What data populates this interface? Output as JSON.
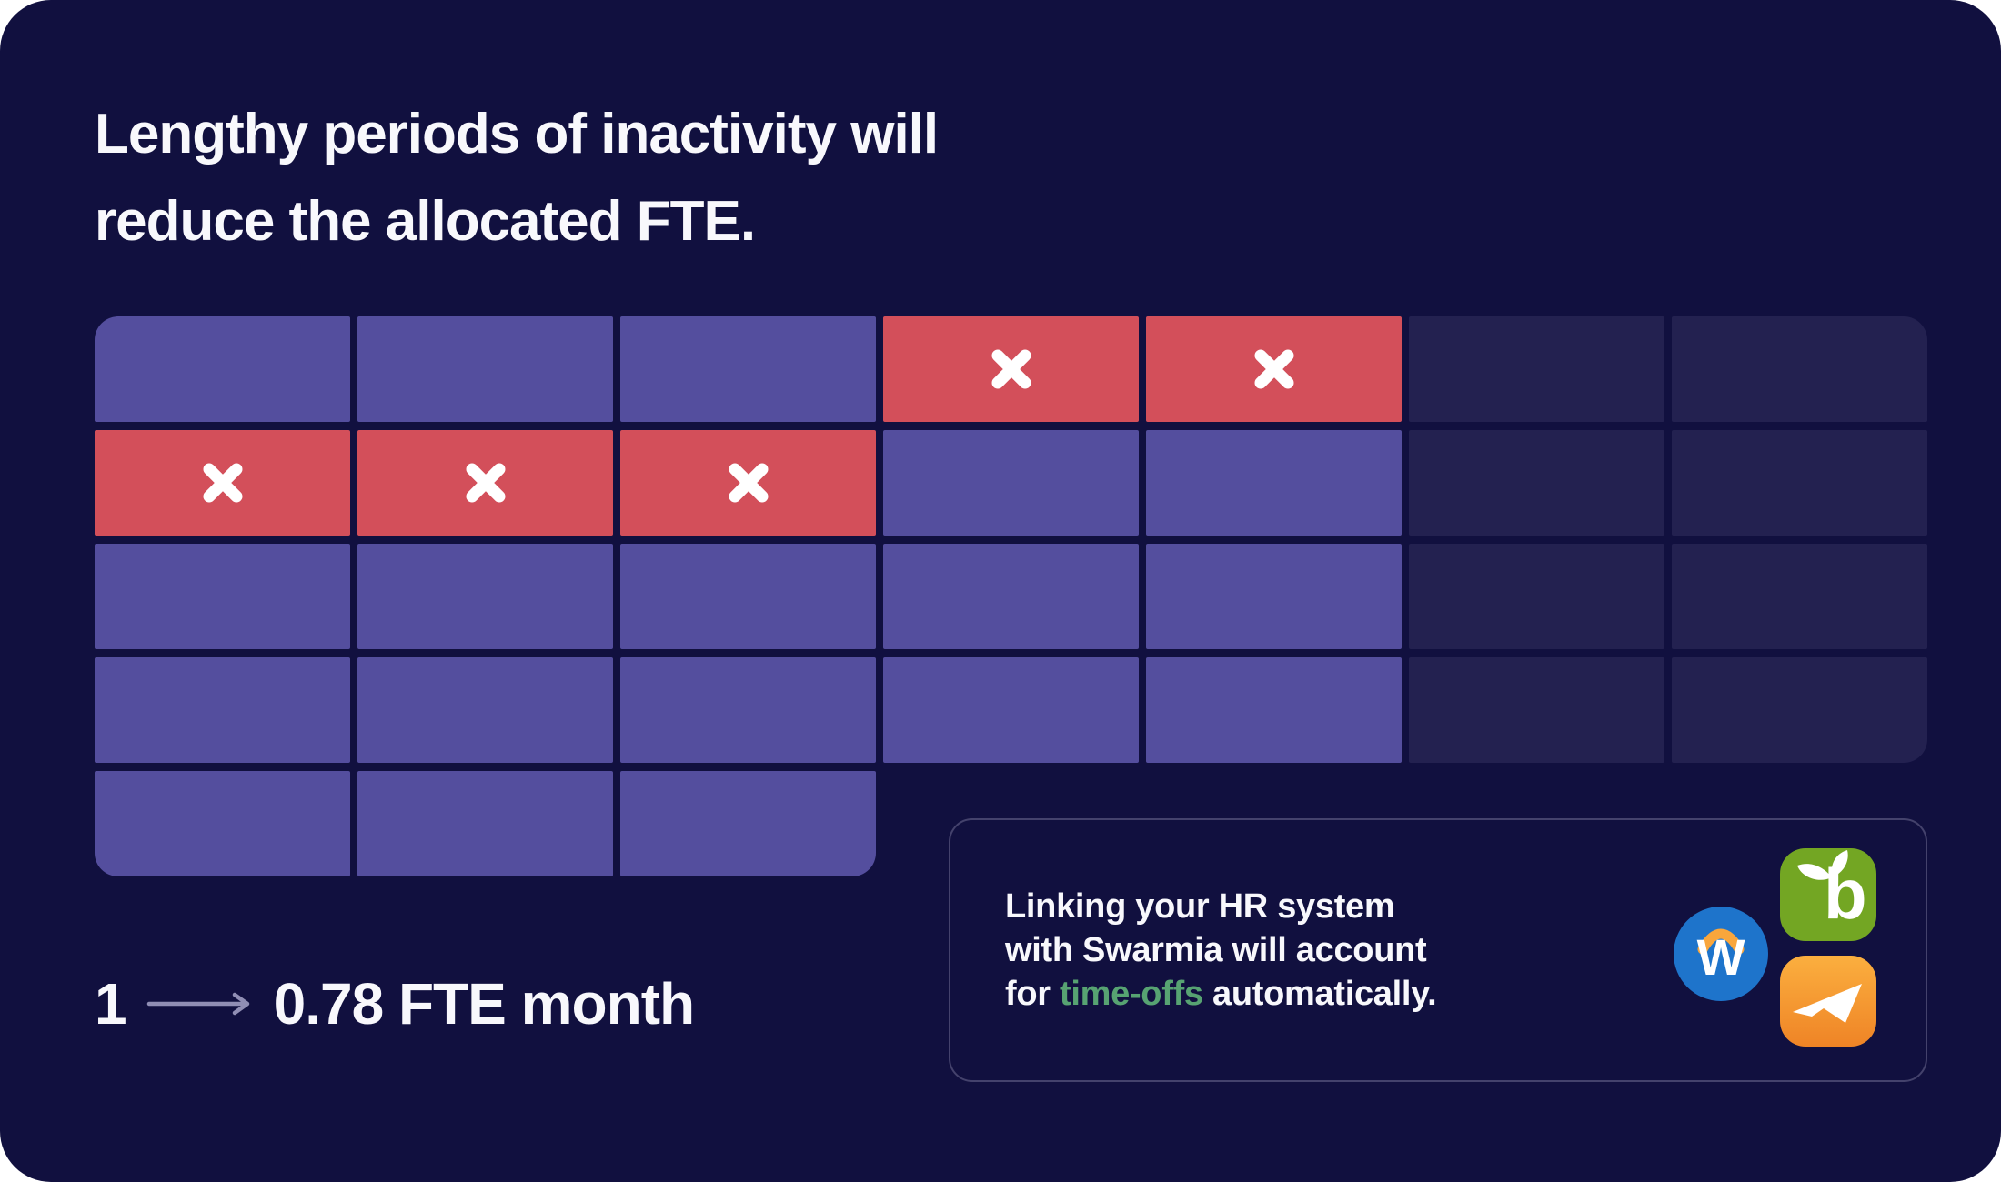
{
  "title": {
    "line1": "Lengthy periods of inactivity will",
    "line2": "reduce the allocated FTE."
  },
  "grid": {
    "legend_states": {
      "on": "active month cell",
      "off": "inactive month cell with x mark",
      "dim": "future/unallocated month cell",
      "none": "empty"
    },
    "cells": [
      [
        "on",
        "on",
        "on",
        "off",
        "off",
        "dim",
        "dim"
      ],
      [
        "off",
        "off",
        "off",
        "on",
        "on",
        "dim",
        "dim"
      ],
      [
        "on",
        "on",
        "on",
        "on",
        "on",
        "dim",
        "dim"
      ],
      [
        "on",
        "on",
        "on",
        "on",
        "on",
        "dim",
        "dim"
      ],
      [
        "on",
        "on",
        "on",
        "none",
        "none",
        "none",
        "none"
      ]
    ],
    "rounded": {
      "0-0": [
        "tl"
      ],
      "0-6": [
        "tr"
      ],
      "3-6": [
        "br"
      ],
      "4-0": [
        "bl"
      ],
      "4-2": [
        "br"
      ]
    }
  },
  "legend": {
    "source": "1",
    "result": "0.78 FTE month"
  },
  "card": {
    "line1": "Linking your HR system",
    "line2": "with Swarmia will account",
    "line3_pre": "for ",
    "line3_highlight": "time-offs",
    "line3_post": " automatically."
  },
  "icons": {
    "workday": {
      "letter": "W"
    },
    "bamboohr": {
      "letter": "b"
    },
    "paylocity": {
      "shape": "send-arrow"
    }
  },
  "colors": {
    "background": "#11103f",
    "cell_active": "#544e9e",
    "cell_inactive": "#d34f5a",
    "cell_dim": "#232150",
    "x_mark": "#ffffff",
    "text_primary": "#f8f8fc",
    "highlight_green": "#57a372",
    "arrow_grey": "#908eb4",
    "card_border": "#44426c",
    "workday_blue": "#1e74cb",
    "workday_arc_orange": "#f9a63c",
    "bamboo_green": "#73a623",
    "paylocity_orange_top": "#fbaf3f",
    "paylocity_orange_bottom": "#ef8426"
  }
}
